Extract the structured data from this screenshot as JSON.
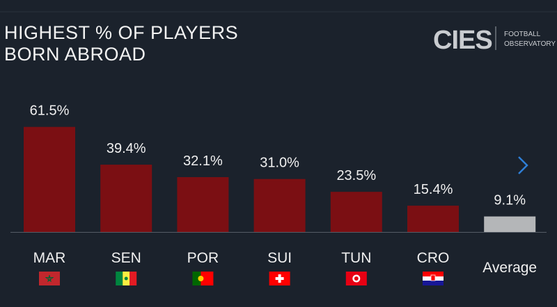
{
  "chart_data": {
    "type": "bar",
    "title": "HIGHEST % OF PLAYERS BORN ABROAD",
    "categories": [
      "MAR",
      "SEN",
      "POR",
      "SUI",
      "TUN",
      "CRO",
      "Average"
    ],
    "values": [
      61.5,
      39.4,
      32.1,
      31.0,
      23.5,
      15.4,
      9.1
    ],
    "value_labels": [
      "61.5%",
      "39.4%",
      "32.1%",
      "31.0%",
      "23.5%",
      "15.4%",
      "9.1%"
    ],
    "colors": [
      "#7b0f13",
      "#7b0f13",
      "#7b0f13",
      "#7b0f13",
      "#7b0f13",
      "#7b0f13",
      "#b4b6b8"
    ]
  },
  "logo": {
    "mark": "CIES",
    "line1": "FOOTBALL",
    "line2": "OBSERVATORY"
  }
}
